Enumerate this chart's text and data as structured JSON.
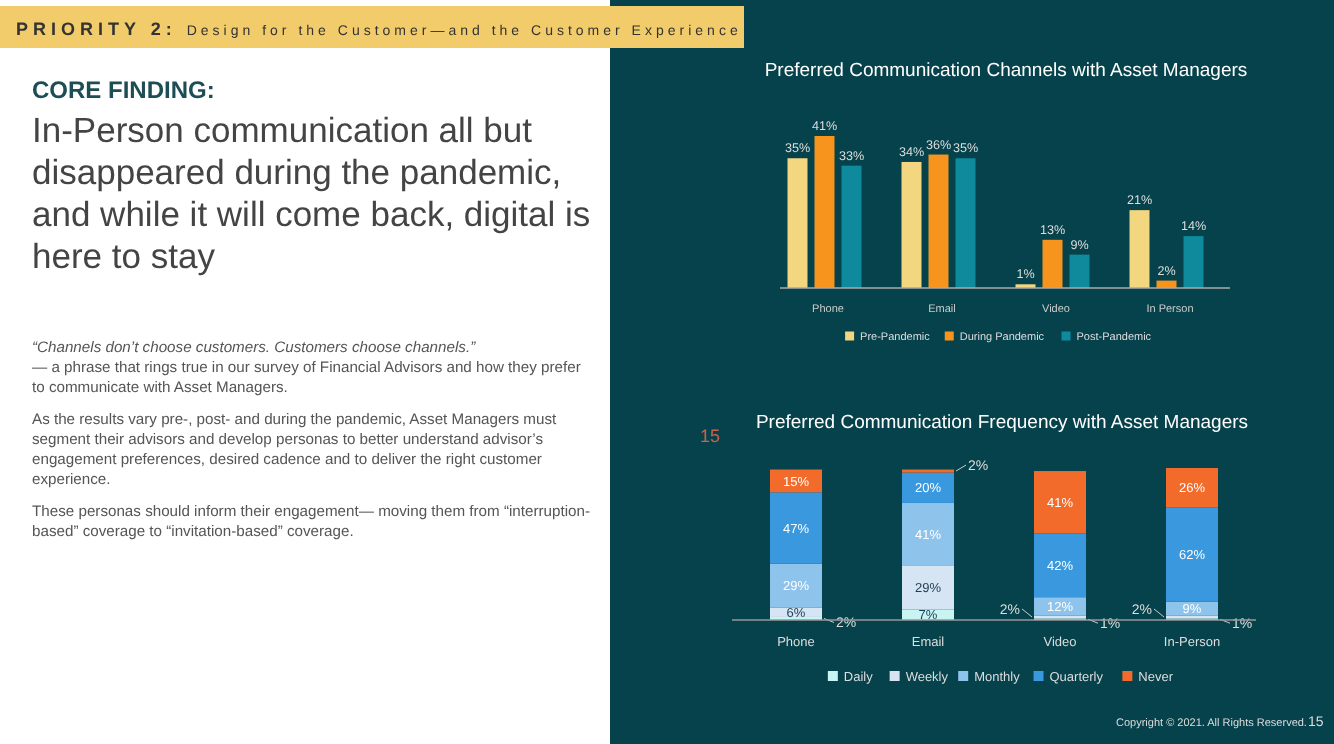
{
  "chart_data": [
    {
      "type": "other",
      "title": "CORE FINDING:",
      "subtitle": "In-Person communication all but disappeared during the pandemic, and while it will come back, digital is here to stay",
      "annotations": [
        "PRIORITY 2:",
        "Design for the Customer—and the Customer Experience",
        "“Channels don’t choose customers.  Customers choose channels.”",
        "— a phrase that rings true in our survey of Financial Advisors and how they prefer to communicate with Asset Managers.",
        "As the results vary pre-, post- and during the pandemic, Asset Managers must segment their advisors and develop personas to better understand advisor’s engagement preferences, desired cadence and to deliver the right customer experience.",
        "These personas should inform their engagement— moving them from “interruption-based” coverage to “invitation-based” coverage.",
        "Copyright © 2021. All Rights Reserved.",
        "15"
      ]
    },
    {
      "type": "bar",
      "title": "Preferred Communication Channels with Asset Managers",
      "categories": [
        "Phone",
        "Email",
        "Video",
        "In Person"
      ],
      "series": [
        {
          "name": "Pre-Pandemic",
          "color": "#f2d680",
          "values": [
            35,
            34,
            1,
            21
          ],
          "value_labels": [
            "35%",
            "34%",
            "1%",
            "21%"
          ]
        },
        {
          "name": "During Pandemic",
          "color": "#f7941d",
          "values": [
            41,
            36,
            13,
            2
          ],
          "value_labels": [
            "41%",
            "36%",
            "13%",
            "2%"
          ]
        },
        {
          "name": "Post-Pandemic",
          "color": "#0e8a9c",
          "values": [
            33,
            35,
            9,
            14
          ],
          "value_labels": [
            "33%",
            "35%",
            "9%",
            "14%"
          ]
        }
      ],
      "legend": "bottom"
    },
    {
      "type": "bar",
      "stacked": true,
      "title": "Preferred Communication Frequency with Asset Managers",
      "categories": [
        "Phone",
        "Email",
        "Video",
        "In-Person"
      ],
      "series": [
        {
          "name": "Daily",
          "color": "#c8f4f4",
          "values": [
            2,
            7,
            1,
            1
          ],
          "value_labels": [
            "2%",
            "7%",
            "1%",
            "1%"
          ]
        },
        {
          "name": "Weekly",
          "color": "#d5e5f3",
          "values": [
            6,
            29,
            2,
            2
          ],
          "value_labels": [
            "6%",
            "29%",
            "2%",
            "2%"
          ]
        },
        {
          "name": "Monthly",
          "color": "#8ec3ec",
          "values": [
            29,
            41,
            12,
            9
          ],
          "value_labels": [
            "29%",
            "41%",
            "12%",
            "9%"
          ]
        },
        {
          "name": "Quarterly",
          "color": "#3a98de",
          "values": [
            47,
            20,
            42,
            62
          ],
          "value_labels": [
            "47%",
            "20%",
            "42%",
            "62%"
          ]
        },
        {
          "name": "Never",
          "color": "#f26b2a",
          "values": [
            15,
            2,
            41,
            26
          ],
          "value_labels": [
            "15%",
            "2%",
            "41%",
            "26%"
          ]
        }
      ],
      "legend": "bottom",
      "annotations": [
        "15"
      ]
    }
  ]
}
